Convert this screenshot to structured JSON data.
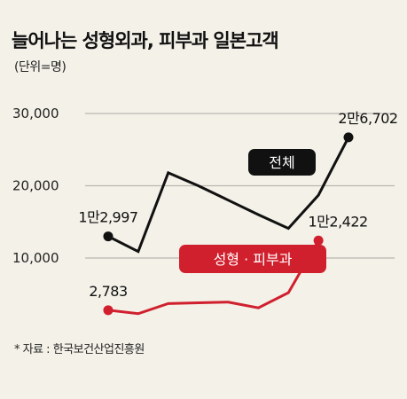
{
  "header": {
    "title": "늘어나는 성형외과, 피부과 일본고객",
    "unit": "(단위=명)"
  },
  "footer": {
    "source": "* 자료 : 한국보건산업진흥원"
  },
  "colors": {
    "background": "#f3f1e8",
    "total_line": "#111111",
    "cosmetic_line": "#d0202e",
    "grid": "#b9b7b0"
  },
  "chart_data": {
    "type": "line",
    "x_count": 10,
    "ylim": [
      0,
      30000
    ],
    "yticks": [
      {
        "value": 30000,
        "label": "30,000"
      },
      {
        "value": 20000,
        "label": "20,000"
      },
      {
        "value": 10000,
        "label": "10,000"
      }
    ],
    "series": [
      {
        "name": "전체",
        "color": "#111111",
        "values": [
          12997,
          10900,
          21800,
          20000,
          18000,
          16000,
          14100,
          18700,
          26702,
          null
        ],
        "labels": [
          {
            "index": 0,
            "text": "1만2,997",
            "pos": "above"
          },
          {
            "index": 8,
            "text": "2만6,702",
            "pos": "above"
          }
        ]
      },
      {
        "name": "성형 · 피부과",
        "color": "#d0202e",
        "values": [
          2783,
          2300,
          3700,
          3800,
          3900,
          3100,
          5200,
          12422,
          null,
          null
        ],
        "labels": [
          {
            "index": 0,
            "text": "2,783",
            "pos": "above"
          },
          {
            "index": 7,
            "text": "1만2,422",
            "pos": "above"
          }
        ]
      }
    ]
  }
}
